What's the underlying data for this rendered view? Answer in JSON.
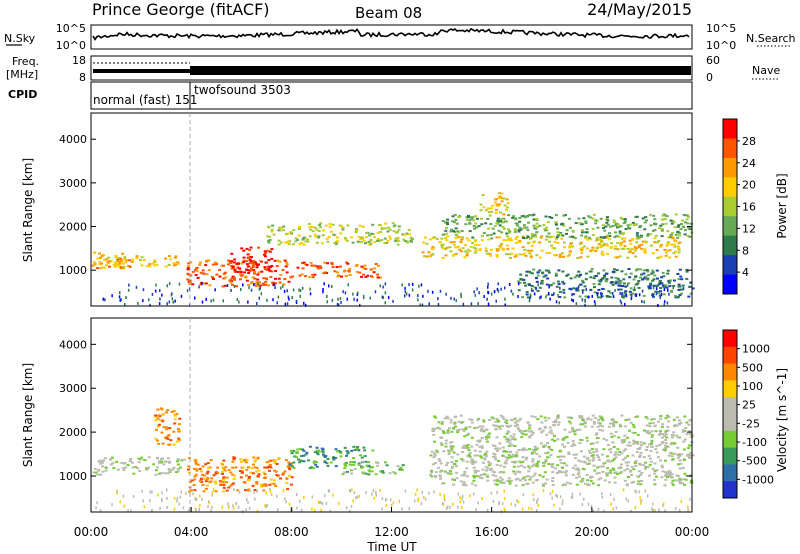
{
  "header": {
    "title": "Prince George (fitACF)",
    "beam": "Beam 08",
    "date": "24/May/2015"
  },
  "top_panels": {
    "nsky_label": "N.Sky",
    "nsearch_label": "N.Search",
    "nsky_ticks": [
      "10^5",
      "10^0"
    ],
    "nsearch_ticks": [
      "10^5",
      "10^0"
    ],
    "freq_label_1": "Freq.",
    "freq_label_2": "[MHz]",
    "freq_ticks": [
      "18",
      "8"
    ],
    "nave_label": "Nave",
    "nave_ticks": [
      "60",
      "0"
    ],
    "cpid_label": "CPID",
    "cpid_mode_1": "normal (fast) 151",
    "cpid_mode_2": "twofsound 3503"
  },
  "chart_data": [
    {
      "type": "heatmap",
      "panel": "power",
      "ylabel": "Slant Range [km]",
      "xlabel": "",
      "x_range_hours": [
        0,
        24
      ],
      "ylim": [
        180,
        4600
      ],
      "yticks": [
        1000,
        2000,
        3000,
        4000
      ],
      "colorbar_label": "Power [dB]",
      "colorbar_ticks": [
        "28",
        "24",
        "20",
        "16",
        "12",
        "8",
        "4"
      ],
      "colors": [
        "#0000ff",
        "#1a3fb5",
        "#2f7a4a",
        "#66aa55",
        "#aacc33",
        "#ffcc00",
        "#ff9900",
        "#ff5500",
        "#ff0000"
      ],
      "scatter_bands": [
        {
          "t0": 0.0,
          "t1": 1.6,
          "r0": 1050,
          "r1": 1450,
          "level": 6
        },
        {
          "t0": 0.2,
          "t1": 3.8,
          "r0": 1100,
          "r1": 1350,
          "level": 5
        },
        {
          "t0": 3.8,
          "t1": 8.0,
          "r0": 650,
          "r1": 1250,
          "level": 7
        },
        {
          "t0": 5.5,
          "t1": 7.2,
          "r0": 900,
          "r1": 1550,
          "level": 8
        },
        {
          "t0": 8.2,
          "t1": 11.5,
          "r0": 850,
          "r1": 1200,
          "level": 7
        },
        {
          "t0": 7.0,
          "t1": 12.8,
          "r0": 1600,
          "r1": 2100,
          "level": 4
        },
        {
          "t0": 13.2,
          "t1": 23.5,
          "r0": 1300,
          "r1": 1800,
          "level": 5
        },
        {
          "t0": 14.0,
          "t1": 24.0,
          "r0": 1750,
          "r1": 2300,
          "level": 3
        },
        {
          "t0": 15.5,
          "t1": 16.6,
          "r0": 2300,
          "r1": 2800,
          "level": 5
        },
        {
          "t0": 17.0,
          "t1": 24.0,
          "r0": 400,
          "r1": 1050,
          "level": 2
        }
      ]
    },
    {
      "type": "heatmap",
      "panel": "velocity",
      "ylabel": "Slant Range [km]",
      "xlabel": "Time UT",
      "x_range_hours": [
        0,
        24
      ],
      "ylim": [
        180,
        4600
      ],
      "yticks": [
        1000,
        2000,
        3000,
        4000
      ],
      "xtick_labels": [
        "00:00",
        "04:00",
        "08:00",
        "12:00",
        "16:00",
        "20:00",
        "00:00"
      ],
      "colorbar_label": "Velocity [m s^-1]",
      "colorbar_ticks": [
        "1000",
        "500",
        "100",
        "25",
        "-25",
        "-100",
        "-500",
        "-1000"
      ],
      "colors": [
        "#2233cc",
        "#2f6fa8",
        "#3a9a5a",
        "#77cc33",
        "#bbbbb0",
        "#bbbbb0",
        "#ffcc00",
        "#ff8800",
        "#ff4400",
        "#ff0000"
      ],
      "scatter_bands": [
        {
          "t0": 0.0,
          "t1": 3.8,
          "r0": 1050,
          "r1": 1450,
          "level": 4
        },
        {
          "t0": 3.8,
          "t1": 8.0,
          "r0": 650,
          "r1": 1450,
          "level": 7
        },
        {
          "t0": 7.8,
          "t1": 11.2,
          "r0": 1200,
          "r1": 1700,
          "level": 2
        },
        {
          "t0": 10.0,
          "t1": 12.5,
          "r0": 1050,
          "r1": 1350,
          "level": 3
        },
        {
          "t0": 13.5,
          "t1": 24.0,
          "r0": 800,
          "r1": 2400,
          "level": 4
        },
        {
          "t0": 2.5,
          "t1": 3.5,
          "r0": 1700,
          "r1": 2600,
          "level": 7
        }
      ]
    }
  ]
}
